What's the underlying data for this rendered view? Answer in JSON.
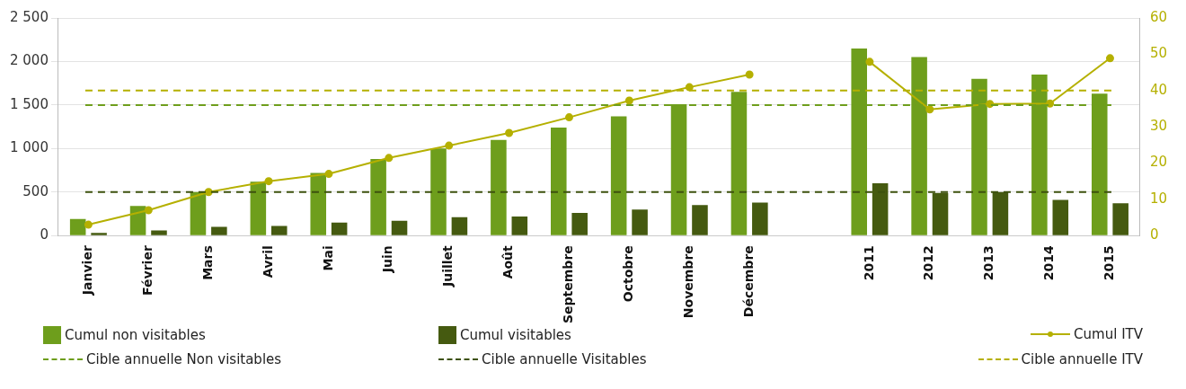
{
  "chart_data": {
    "type": "bar",
    "categories": [
      "Janvier",
      "Février",
      "Mars",
      "Avril",
      "Mai",
      "Juin",
      "Juillet",
      "Août",
      "Septembre",
      "Octobre",
      "Novembre",
      "Décembre",
      null,
      "2011",
      "2012",
      "2013",
      "2014",
      "2015"
    ],
    "series": [
      {
        "name": "Cumul non visitables",
        "color": "#6e9e1c",
        "values": [
          190,
          340,
          500,
          620,
          720,
          880,
          1000,
          1100,
          1240,
          1370,
          1510,
          1650,
          null,
          2150,
          2050,
          1800,
          1850,
          1630
        ]
      },
      {
        "name": "Cumul visitables",
        "color": "#455a10",
        "values": [
          30,
          60,
          100,
          110,
          150,
          170,
          210,
          220,
          260,
          300,
          350,
          380,
          null,
          600,
          490,
          500,
          410,
          370
        ]
      },
      {
        "name": "Cumul ITV",
        "type": "line",
        "axis": "y2",
        "color": "#b5b000",
        "marker": "circle",
        "values": [
          3.0,
          7.0,
          12.0,
          15,
          17,
          21.4,
          24.8,
          28.3,
          32.6,
          37.2,
          40.9,
          44.4,
          null,
          47.9,
          34.8,
          36.3,
          36.4,
          48.9
        ]
      }
    ],
    "ylim": [
      0,
      2500
    ],
    "yticks": [
      0,
      500,
      {
        "value": 1000,
        "label": "1 000"
      },
      {
        "value": 1500,
        "label": "1 500"
      },
      {
        "value": 2000,
        "label": "2 000"
      },
      {
        "value": 2500,
        "label": "2 500"
      }
    ],
    "y2lim": [
      0,
      60
    ],
    "y2ticks": [
      0,
      10,
      20,
      30,
      40,
      50,
      60
    ],
    "ref_lines": [
      {
        "axis": "y",
        "value": 1500,
        "label": "Cible annuelle Non visitables",
        "color": "#6e9e1c",
        "line_style": "dashed"
      },
      {
        "axis": "y",
        "value": 500,
        "label": "Cible annuelle Visitables",
        "color": "#3d520e",
        "line_style": "dashed"
      },
      {
        "axis": "y2",
        "value": 40,
        "label": "Cible annuelle ITV",
        "color": "#b5b000",
        "line_style": "dashed"
      }
    ],
    "grid": "y",
    "legend": "bottom"
  }
}
